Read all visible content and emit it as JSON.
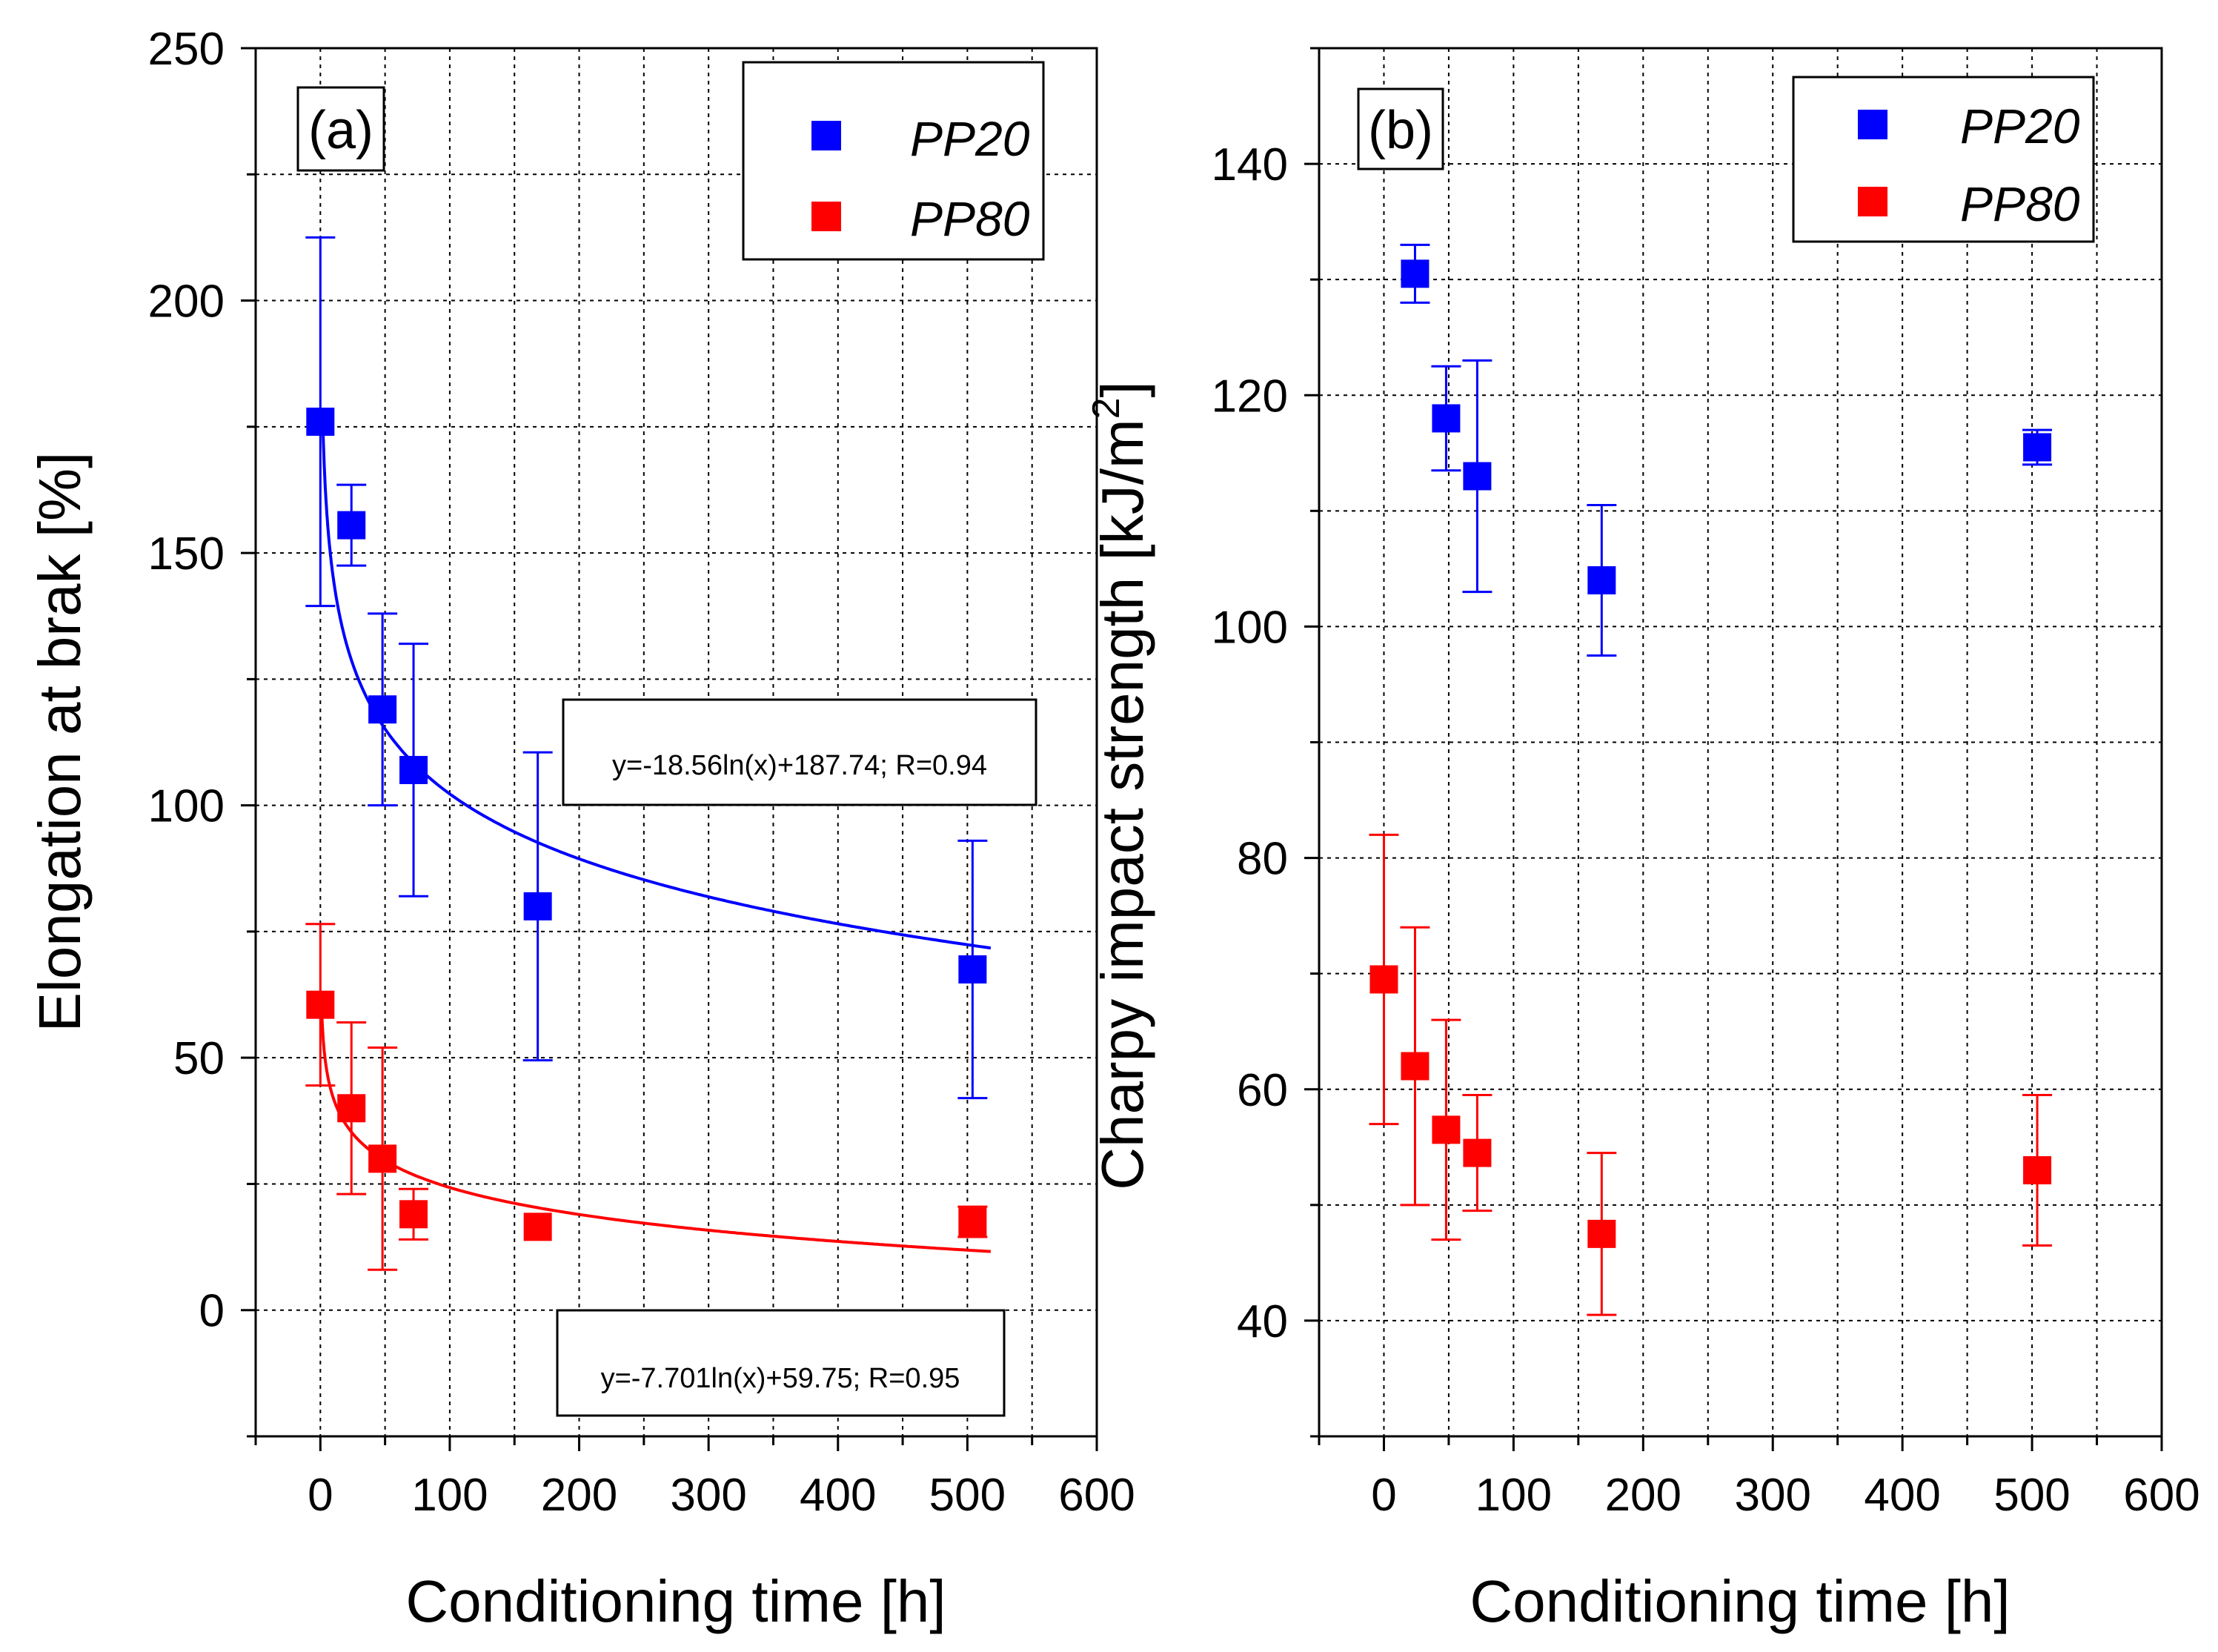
{
  "colors": {
    "PP20": "#0000ff",
    "PP80": "#ff0000"
  },
  "chart_data": [
    {
      "type": "scatter",
      "panel": "(a)",
      "xlabel": "Conditioning time [h]",
      "ylabel": "Elongation at brak [%]",
      "xlim": [
        -50,
        600
      ],
      "ylim": [
        -25,
        250
      ],
      "xticks": [
        "0",
        "100",
        "200",
        "300",
        "400",
        "500",
        "600"
      ],
      "yticks": [
        "0",
        "50",
        "100",
        "150",
        "200",
        "250"
      ],
      "series": [
        {
          "name": "PP20",
          "x": [
            0,
            24,
            48,
            72,
            168,
            504
          ],
          "y": [
            176,
            155.5,
            119,
            107,
            80,
            67.5
          ],
          "err": [
            36.5,
            8,
            19,
            25,
            30.5,
            25.5
          ],
          "fit": {
            "a": -18.56,
            "b": 187.74,
            "label": "y=-18.56ln(x)+187.74; R=0.94"
          }
        },
        {
          "name": "PP80",
          "x": [
            0,
            24,
            48,
            72,
            168,
            504
          ],
          "y": [
            60.5,
            40,
            30,
            19,
            16.5,
            17.5
          ],
          "err": [
            16,
            17,
            22,
            5,
            0,
            3
          ],
          "fit": {
            "a": -7.701,
            "b": 59.75,
            "label": "y=-7.701ln(x)+59.75; R=0.95"
          }
        }
      ]
    },
    {
      "type": "scatter",
      "panel": "(b)",
      "xlabel": "Conditioning time [h]",
      "ylabel": "Charpy impact strength [kJ/m",
      "ylabel_sup": "2",
      "ylabel_end": "]",
      "xlim": [
        -50,
        600
      ],
      "ylim": [
        30,
        150
      ],
      "xticks": [
        "0",
        "100",
        "200",
        "300",
        "400",
        "500",
        "600"
      ],
      "yticks": [
        "40",
        "60",
        "80",
        "100",
        "120",
        "140"
      ],
      "series": [
        {
          "name": "PP20",
          "x": [
            24,
            48,
            72,
            168,
            504
          ],
          "y": [
            130.5,
            118,
            113,
            104,
            115.5
          ],
          "err": [
            2.5,
            4.5,
            10,
            6.5,
            1.5
          ]
        },
        {
          "name": "PP80",
          "x": [
            0,
            24,
            48,
            72,
            168,
            504
          ],
          "y": [
            69.5,
            62,
            56.5,
            54.5,
            47.5,
            53
          ],
          "err": [
            12.5,
            12,
            9.5,
            5,
            7,
            6.5
          ]
        }
      ]
    }
  ]
}
